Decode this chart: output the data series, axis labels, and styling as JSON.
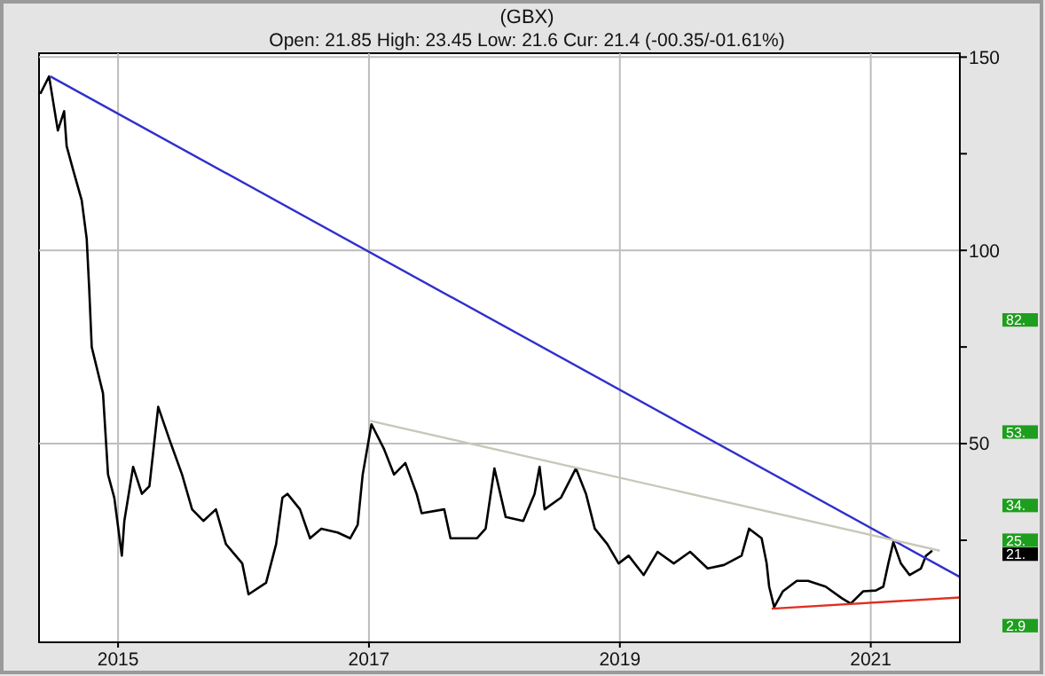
{
  "chart_data": {
    "type": "line",
    "title": "(GBX)",
    "subtitle": "Open: 21.85 High: 23.45 Low: 21.6 Cur: 21.4 (-00.35/-01.61%)",
    "xlim": [
      2014.37,
      2021.71
    ],
    "xticks": [
      2015,
      2017,
      2019,
      2021
    ],
    "ylim": [
      -1.4,
      151
    ],
    "yticks": [
      {
        "value": 25,
        "label": null
      },
      50,
      {
        "value": 75,
        "label": null
      },
      100,
      {
        "value": 125,
        "label": null
      },
      150
    ],
    "grid": true,
    "marker": "none",
    "line_style": "solid",
    "series": [
      {
        "color": "#000000",
        "x": [
          2014.38,
          2014.45,
          2014.52,
          2014.57,
          2014.59,
          2014.64,
          2014.71,
          2014.75,
          2014.77,
          2014.79,
          2014.88,
          2014.92,
          2014.97,
          2015.03,
          2015.05,
          2015.12,
          2015.19,
          2015.25,
          2015.32,
          2015.41,
          2015.51,
          2015.59,
          2015.68,
          2015.78,
          2015.86,
          2015.99,
          2016.04,
          2016.18,
          2016.26,
          2016.31,
          2016.35,
          2016.45,
          2016.53,
          2016.62,
          2016.75,
          2016.85,
          2016.91,
          2016.95,
          2017.02,
          2017.12,
          2017.2,
          2017.29,
          2017.38,
          2017.42,
          2017.6,
          2017.65,
          2017.86,
          2017.93,
          2018.0,
          2018.09,
          2018.23,
          2018.32,
          2018.36,
          2018.4,
          2018.53,
          2018.65,
          2018.73,
          2018.8,
          2018.9,
          2018.99,
          2019.07,
          2019.19,
          2019.3,
          2019.43,
          2019.56,
          2019.7,
          2019.83,
          2019.97,
          2020.03,
          2020.13,
          2020.17,
          2020.19,
          2020.23,
          2020.3,
          2020.41,
          2020.5,
          2020.64,
          2020.77,
          2020.84,
          2020.94,
          2021.04,
          2021.1,
          2021.14,
          2021.18,
          2021.24,
          2021.31,
          2021.4,
          2021.44,
          2021.49
        ],
        "values": [
          140.5,
          145,
          131,
          136,
          127,
          121,
          113,
          103,
          90,
          75,
          63,
          42,
          36,
          21,
          30,
          44,
          37,
          39,
          59.5,
          51,
          42,
          33,
          30,
          33,
          24,
          19,
          11,
          14,
          24,
          36,
          37,
          33,
          25.5,
          28,
          27,
          25.5,
          29,
          42,
          55,
          48.6,
          42,
          45,
          37,
          32,
          33,
          25.5,
          25.5,
          28,
          43.6,
          31,
          30,
          37,
          44,
          33,
          36,
          43.6,
          37,
          28,
          24,
          19,
          21,
          16,
          22,
          19,
          22,
          17.7,
          18.6,
          21,
          28,
          25.5,
          19,
          13,
          7.7,
          11.8,
          14.5,
          14.5,
          13,
          10,
          8.6,
          11.8,
          12,
          13,
          19,
          24.5,
          19,
          16,
          17.7,
          21,
          22.3
        ]
      },
      {
        "color": "#3030cc",
        "x": [
          2014.46,
          2021.71
        ],
        "values": [
          145,
          15.5
        ]
      },
      {
        "color": "#c8c8b8",
        "x": [
          2017.01,
          2021.55
        ],
        "values": [
          55.9,
          22.3
        ]
      },
      {
        "color": "#e03020",
        "x": [
          2020.21,
          2021.71
        ],
        "values": [
          7.3,
          10.2
        ]
      }
    ],
    "y2lim": [
      -1.4,
      151
    ],
    "y2ticks": [
      {
        "value": 82,
        "label": "82."
      },
      {
        "value": 53,
        "label": "53."
      },
      {
        "value": 34,
        "label": "34."
      },
      {
        "value": 25,
        "label": "25."
      },
      {
        "value": 21.4,
        "label": "21."
      },
      {
        "value": 2.9,
        "label": "2.9"
      }
    ]
  }
}
